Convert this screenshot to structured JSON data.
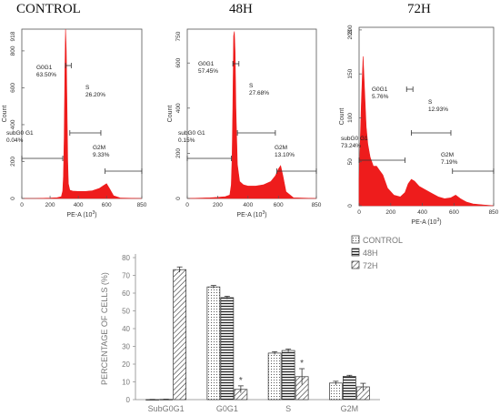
{
  "figure": {
    "panel_titles": [
      "CONTROL",
      "48H",
      "72H"
    ]
  },
  "histogram_common": {
    "xlabel": "PE-A",
    "xunit": "(10",
    "xunit_sup": "3",
    "xunit_close": ")",
    "ylabel": "Count",
    "xticks": [
      "0",
      "200",
      "400",
      "600",
      "850"
    ],
    "colors": {
      "fill": "#ee1c1c",
      "bg": "#ffffff",
      "axis": "#555555"
    }
  },
  "chart_data": [
    {
      "type": "area",
      "title": "CONTROL",
      "ymax_label": "918",
      "ymax": 918,
      "yticks": [
        "0",
        "200",
        "400",
        "600",
        "800"
      ],
      "ytick_values": [
        0,
        200,
        400,
        600,
        800
      ],
      "gates": [
        {
          "name_line1": "G0G1",
          "name_line2": "63.50%"
        },
        {
          "name_line1": "S",
          "name_line2": "26.20%"
        },
        {
          "name_line1": "subG0 G1",
          "name_line2": "0.04%"
        },
        {
          "name_line1": "G2M",
          "name_line2": "9.33%"
        }
      ],
      "gate_ranges": [
        [
          310,
          350
        ],
        [
          340,
          560
        ],
        [
          0,
          290
        ],
        [
          590,
          860
        ]
      ],
      "histogram_x": [
        0,
        50,
        100,
        150,
        200,
        250,
        280,
        290,
        295,
        300,
        305,
        310,
        315,
        320,
        325,
        330,
        340,
        360,
        400,
        450,
        500,
        550,
        580,
        600,
        620,
        650,
        700,
        850
      ],
      "histogram_y": [
        0,
        0,
        0,
        1,
        2,
        4,
        10,
        40,
        120,
        330,
        700,
        918,
        800,
        500,
        200,
        80,
        45,
        40,
        38,
        38,
        42,
        55,
        70,
        80,
        55,
        15,
        2,
        0
      ]
    },
    {
      "type": "area",
      "title": "48H",
      "ymax_label": "750",
      "ymax": 750,
      "yticks": [
        "0",
        "200",
        "400",
        "600"
      ],
      "ytick_values": [
        0,
        200,
        400,
        600
      ],
      "gates": [
        {
          "name_line1": "G0G1",
          "name_line2": "57.45%"
        },
        {
          "name_line1": "S",
          "name_line2": "27.68%"
        },
        {
          "name_line1": "subG0 G1",
          "name_line2": "0.15%"
        },
        {
          "name_line1": "G2M",
          "name_line2": "13.10%"
        }
      ],
      "gate_ranges": [
        [
          300,
          340
        ],
        [
          330,
          580
        ],
        [
          0,
          290
        ],
        [
          590,
          860
        ]
      ],
      "histogram_x": [
        0,
        50,
        100,
        150,
        200,
        250,
        280,
        290,
        295,
        300,
        305,
        310,
        315,
        320,
        330,
        345,
        370,
        400,
        450,
        500,
        550,
        580,
        600,
        615,
        630,
        650,
        700,
        850
      ],
      "histogram_y": [
        0,
        1,
        2,
        3,
        5,
        8,
        15,
        60,
        180,
        400,
        720,
        740,
        650,
        400,
        150,
        75,
        60,
        55,
        55,
        60,
        75,
        100,
        130,
        145,
        100,
        30,
        3,
        0
      ]
    },
    {
      "type": "area",
      "title": "72H",
      "ymax_label": "203",
      "ymax": 203,
      "yticks": [
        "0",
        "50",
        "100",
        "150",
        "200"
      ],
      "ytick_values": [
        0,
        50,
        100,
        150,
        200
      ],
      "gates": [
        {
          "name_line1": "G0G1",
          "name_line2": "5.76%"
        },
        {
          "name_line1": "S",
          "name_line2": "12.93%"
        },
        {
          "name_line1": "subG0 G1",
          "name_line2": "73.24%"
        },
        {
          "name_line1": "G2M",
          "name_line2": "7.19%"
        }
      ],
      "gate_ranges": [
        [
          300,
          340
        ],
        [
          330,
          580
        ],
        [
          0,
          290
        ],
        [
          590,
          860
        ]
      ],
      "histogram_x": [
        0,
        15,
        25,
        35,
        45,
        55,
        70,
        90,
        110,
        130,
        150,
        180,
        220,
        260,
        290,
        310,
        330,
        350,
        380,
        420,
        460,
        500,
        540,
        580,
        610,
        640,
        680,
        720,
        780,
        850
      ],
      "histogram_y": [
        30,
        120,
        170,
        130,
        90,
        70,
        55,
        45,
        45,
        40,
        35,
        20,
        12,
        10,
        15,
        25,
        30,
        28,
        22,
        18,
        14,
        10,
        8,
        9,
        12,
        8,
        4,
        2,
        1,
        0
      ]
    },
    {
      "type": "bar",
      "ylabel": "PERCENTAGE OF CELLS (%)",
      "ylim": [
        0,
        80
      ],
      "yticks": [
        0,
        10,
        20,
        30,
        40,
        50,
        60,
        70,
        80
      ],
      "categories": [
        "SubG0G1",
        "G0G1",
        "S",
        "G2M"
      ],
      "series": [
        {
          "name": "CONTROL",
          "values": [
            0.04,
            63.5,
            26.2,
            9.33
          ],
          "errors": [
            0.1,
            0.8,
            0.8,
            1.0
          ],
          "pattern": "dots"
        },
        {
          "name": "48H",
          "values": [
            0.15,
            57.45,
            27.68,
            13.1
          ],
          "errors": [
            0.1,
            0.8,
            0.8,
            0.6
          ],
          "pattern": "hlines"
        },
        {
          "name": "72H",
          "values": [
            73.24,
            5.76,
            12.93,
            7.19
          ],
          "errors": [
            1.5,
            2.0,
            4.5,
            2.0
          ],
          "pattern": "diag"
        }
      ],
      "annotations": [
        {
          "category": "G0G1",
          "series": "72H",
          "text": "*"
        },
        {
          "category": "S",
          "series": "72H",
          "text": "*"
        }
      ],
      "legend": "top-right",
      "grid": false
    }
  ]
}
